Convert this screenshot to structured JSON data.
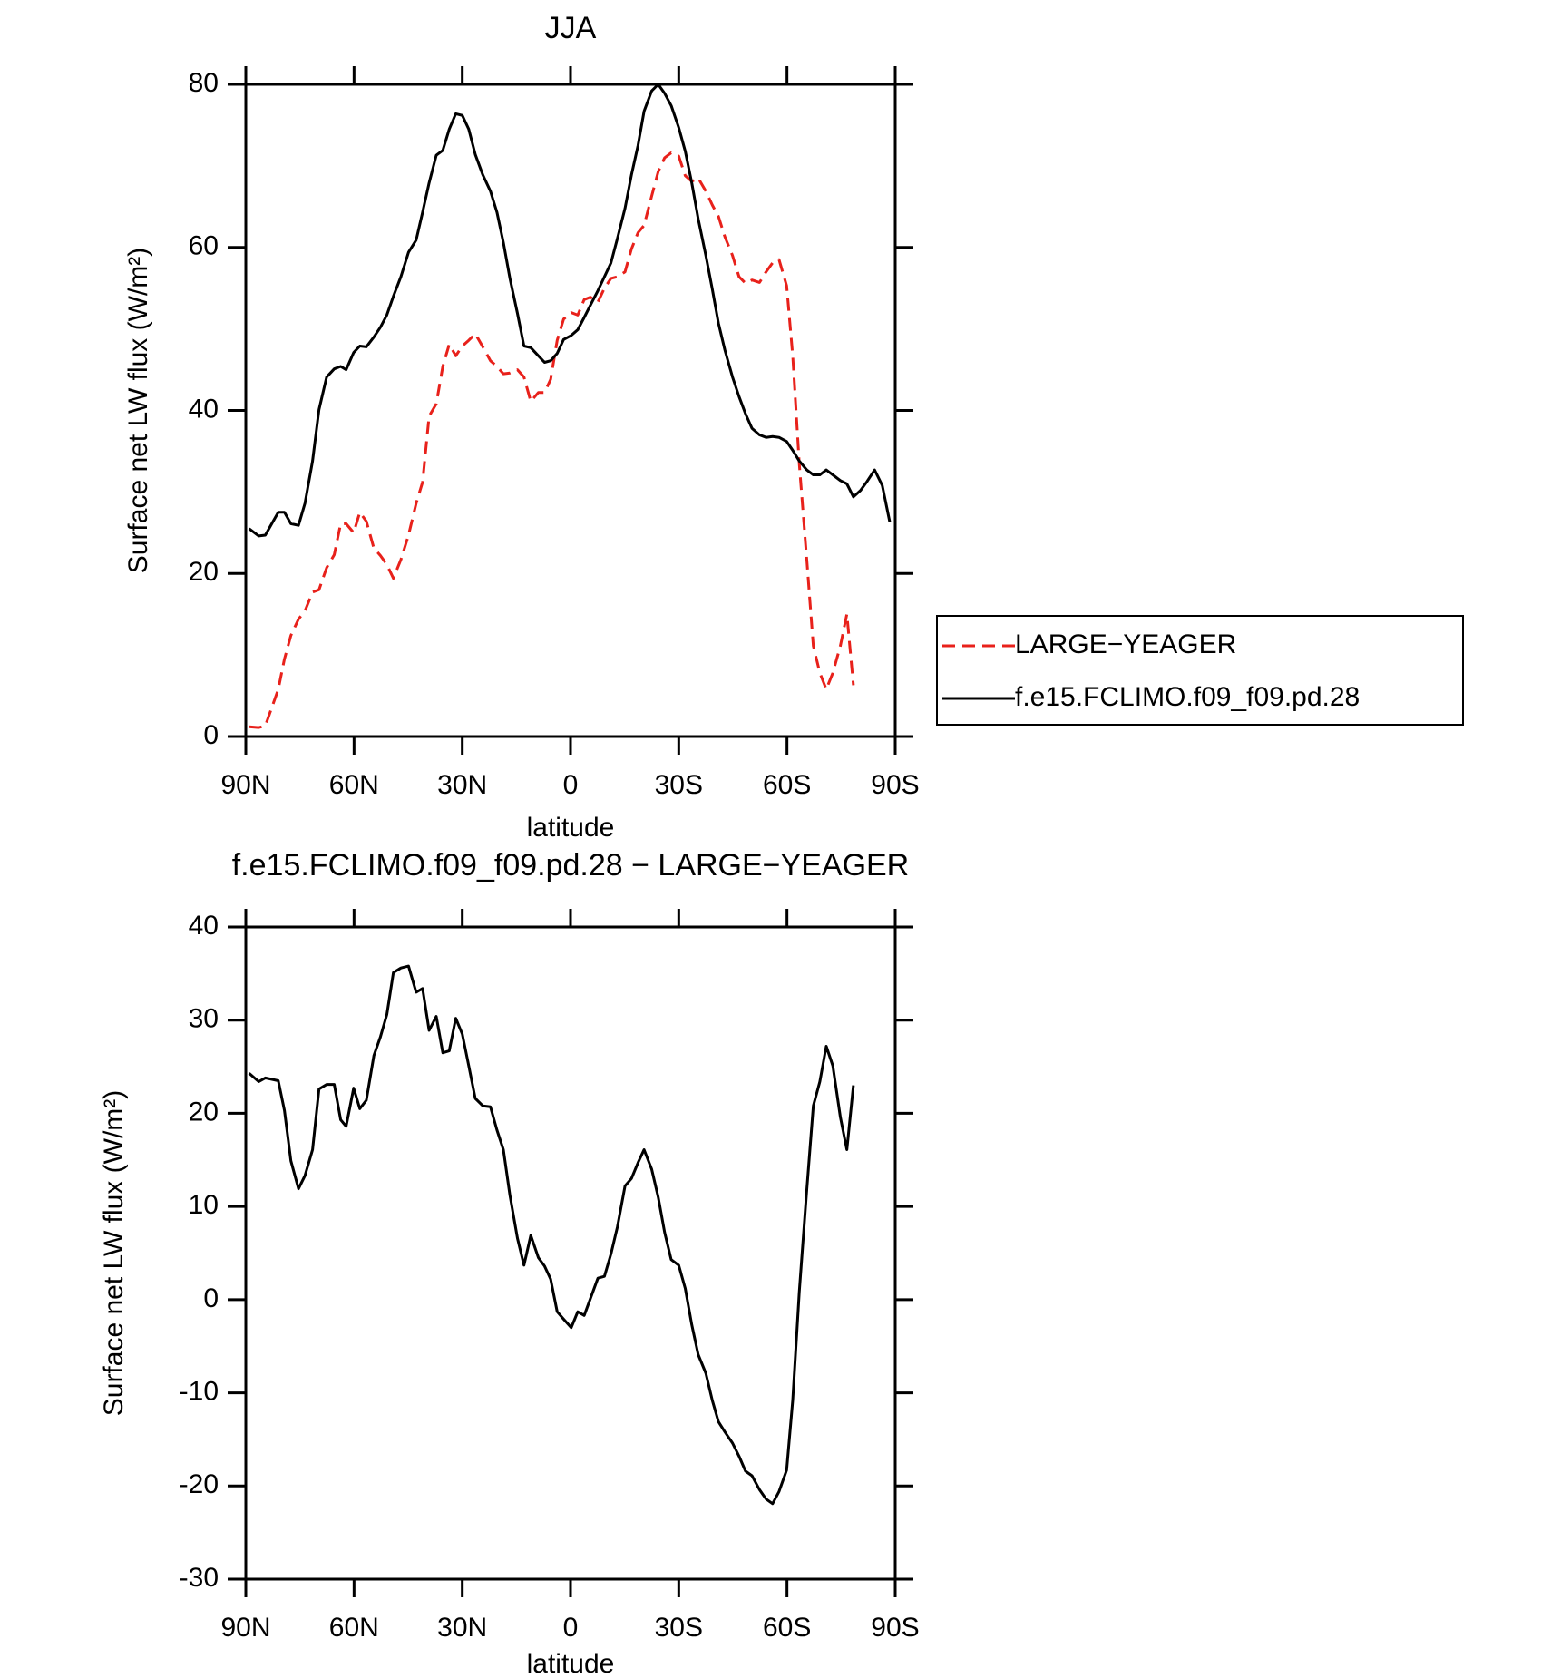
{
  "chart_data": [
    {
      "type": "line",
      "title": "JJA",
      "xlabel": "latitude",
      "ylabel": "Surface net LW flux (W/m²)",
      "x": [
        89.1,
        86.4,
        84.6,
        81.0,
        79.3,
        77.5,
        75.4,
        73.6,
        71.5,
        69.7,
        67.6,
        65.5,
        63.7,
        62.2,
        60.1,
        58.4,
        56.6,
        54.5,
        52.7,
        50.9,
        49.1,
        47.0,
        44.9,
        42.8,
        41.0,
        39.2,
        37.2,
        35.4,
        33.6,
        31.8,
        30.0,
        28.2,
        26.4,
        24.3,
        22.2,
        20.4,
        18.6,
        16.8,
        14.7,
        12.9,
        11.0,
        8.9,
        7.2,
        5.5,
        3.7,
        1.9,
        -0.2,
        -2.0,
        -3.8,
        -5.5,
        -7.6,
        -9.4,
        -11.2,
        -13.0,
        -15.1,
        -16.9,
        -18.7,
        -20.4,
        -22.5,
        -24.3,
        -26.1,
        -27.9,
        -30.0,
        -31.8,
        -33.6,
        -35.4,
        -37.5,
        -39.3,
        -41.0,
        -42.8,
        -44.9,
        -46.7,
        -48.5,
        -50.3,
        -52.4,
        -54.2,
        -56.0,
        -57.8,
        -59.9,
        -61.6,
        -63.4,
        -65.5,
        -67.3,
        -69.1,
        -70.9,
        -72.7,
        -74.8,
        -76.6,
        -78.4,
        -80.4,
        -82.2,
        -84.3,
        -86.4,
        -88.5
      ],
      "series": [
        {
          "name": "LARGE−YEAGER",
          "color": "#e8211b",
          "dash": true,
          "values": [
            1.2,
            1.1,
            1.3,
            5.8,
            9.5,
            12.4,
            14.4,
            15.4,
            17.7,
            18.0,
            20.7,
            22.3,
            26.1,
            26.1,
            25.0,
            27.5,
            26.4,
            23.1,
            22.2,
            21.1,
            19.4,
            21.7,
            24.7,
            28.6,
            31.2,
            39.3,
            40.8,
            45.4,
            48.1,
            46.7,
            47.9,
            48.6,
            49.4,
            47.8,
            46.1,
            45.4,
            44.5,
            44.6,
            45.0,
            44.1,
            41.1,
            42.2,
            42.2,
            43.8,
            48.6,
            51.2,
            52.0,
            51.7,
            53.6,
            53.9,
            53.3,
            55.0,
            56.2,
            56.4,
            57.0,
            59.8,
            61.8,
            62.7,
            66.3,
            69.3,
            71.0,
            71.6,
            71.2,
            68.8,
            68.1,
            68.5,
            66.9,
            65.2,
            63.8,
            61.3,
            59.0,
            56.4,
            55.6,
            56.0,
            55.7,
            57.0,
            58.1,
            58.5,
            55.3,
            46.7,
            33.5,
            21.7,
            11.1,
            7.8,
            5.8,
            7.8,
            11.1,
            15.0,
            6.3,
            null,
            null,
            null,
            null,
            null
          ]
        },
        {
          "name": "f.e15.FCLIMO.f09_f09.pd.28",
          "color": "#000000",
          "dash": false,
          "values": [
            25.5,
            24.6,
            24.7,
            27.5,
            27.5,
            26.1,
            25.9,
            28.6,
            33.8,
            40.1,
            44.1,
            45.1,
            45.4,
            45.0,
            47.1,
            47.9,
            47.8,
            49.0,
            50.2,
            51.7,
            54.0,
            56.4,
            59.4,
            60.9,
            64.3,
            67.9,
            71.3,
            71.9,
            74.5,
            76.4,
            76.2,
            74.5,
            71.4,
            68.9,
            66.9,
            64.3,
            60.6,
            56.2,
            51.9,
            47.9,
            47.7,
            46.7,
            45.9,
            46.1,
            47.0,
            48.7,
            49.2,
            49.9,
            51.4,
            52.9,
            54.7,
            56.4,
            58.1,
            61.1,
            64.8,
            68.9,
            72.5,
            76.7,
            79.2,
            80.0,
            78.9,
            77.4,
            74.7,
            71.8,
            67.9,
            63.5,
            59.0,
            54.9,
            50.7,
            47.4,
            44.1,
            41.7,
            39.6,
            37.8,
            37.0,
            36.7,
            36.8,
            36.7,
            36.2,
            35.1,
            33.8,
            32.7,
            32.1,
            32.1,
            32.7,
            32.1,
            31.4,
            31.0,
            29.4,
            30.2,
            31.3,
            32.7,
            30.8,
            26.3
          ]
        }
      ],
      "xlim": [
        90,
        -90
      ],
      "xticks": [
        {
          "value": 90,
          "label": "90N"
        },
        {
          "value": 60,
          "label": "60N"
        },
        {
          "value": 30,
          "label": "30N"
        },
        0,
        {
          "value": -30,
          "label": "30S"
        },
        {
          "value": -60,
          "label": "60S"
        },
        {
          "value": -90,
          "label": "90S"
        }
      ],
      "ylim": [
        0,
        80
      ],
      "yticks": [
        0,
        20,
        40,
        60,
        80
      ],
      "legend": "right"
    },
    {
      "type": "line",
      "title": "f.e15.FCLIMO.f09_f09.pd.28 − LARGE−YEAGER",
      "xlabel": "latitude",
      "ylabel": "Surface net LW flux (W/m²)",
      "x": [
        89.1,
        86.4,
        84.6,
        81.0,
        79.3,
        77.5,
        75.4,
        73.6,
        71.5,
        69.7,
        67.6,
        65.5,
        63.7,
        62.2,
        60.1,
        58.4,
        56.6,
        54.5,
        52.7,
        50.9,
        49.1,
        47.0,
        44.9,
        42.8,
        41.0,
        39.2,
        37.2,
        35.4,
        33.6,
        31.8,
        30.0,
        28.2,
        26.4,
        24.3,
        22.2,
        20.4,
        18.6,
        16.8,
        14.7,
        12.9,
        11.0,
        8.9,
        7.2,
        5.5,
        3.7,
        1.9,
        -0.2,
        -2.0,
        -3.8,
        -5.5,
        -7.6,
        -9.4,
        -11.2,
        -13.0,
        -15.1,
        -16.9,
        -18.7,
        -20.4,
        -22.5,
        -24.3,
        -26.1,
        -27.9,
        -30.0,
        -31.8,
        -33.6,
        -35.4,
        -37.5,
        -39.3,
        -41.0,
        -42.8,
        -44.9,
        -46.7,
        -48.5,
        -50.3,
        -52.4,
        -54.2,
        -56.0,
        -57.8,
        -59.9,
        -61.6,
        -63.4,
        -65.5,
        -67.3,
        -69.1,
        -70.9,
        -72.7,
        -74.8,
        -76.6,
        -78.4,
        -80.4,
        -82.2,
        -84.3,
        -86.4,
        -88.5
      ],
      "color": "#000000",
      "values": [
        24.3,
        23.4,
        23.8,
        23.5,
        20.3,
        14.9,
        11.9,
        13.3,
        16.1,
        22.6,
        23.1,
        23.1,
        19.3,
        18.6,
        22.7,
        20.5,
        21.4,
        26.2,
        28.2,
        30.6,
        35.1,
        35.6,
        35.8,
        33.0,
        33.4,
        28.9,
        30.4,
        26.5,
        26.7,
        30.2,
        28.5,
        25.1,
        21.6,
        20.8,
        20.7,
        18.2,
        16.1,
        11.2,
        6.6,
        3.7,
        6.9,
        4.5,
        3.6,
        2.2,
        -1.3,
        -2.1,
        -3.0,
        -1.3,
        -1.7,
        0.1,
        2.3,
        2.5,
        4.9,
        7.8,
        12.2,
        13.0,
        14.7,
        16.1,
        14.0,
        11.0,
        7.2,
        4.3,
        3.7,
        1.2,
        -2.7,
        -5.9,
        -7.9,
        -10.8,
        -13.1,
        -14.2,
        -15.4,
        -16.8,
        -18.4,
        -18.9,
        -20.4,
        -21.4,
        -21.9,
        -20.6,
        -18.3,
        -10.8,
        0.8,
        11.8,
        20.8,
        23.4,
        27.2,
        25.1,
        19.6,
        16.1,
        23.0,
        null,
        null,
        null,
        null,
        null
      ],
      "xlim": [
        90,
        -90
      ],
      "xticks": [
        {
          "value": 90,
          "label": "90N"
        },
        {
          "value": 60,
          "label": "60N"
        },
        {
          "value": 30,
          "label": "30N"
        },
        0,
        {
          "value": -30,
          "label": "30S"
        },
        {
          "value": -60,
          "label": "60S"
        },
        {
          "value": -90,
          "label": "90S"
        }
      ],
      "ylim": [
        -30,
        40
      ],
      "yticks": [
        -30,
        -20,
        -10,
        0,
        10,
        20,
        30,
        40
      ]
    }
  ]
}
